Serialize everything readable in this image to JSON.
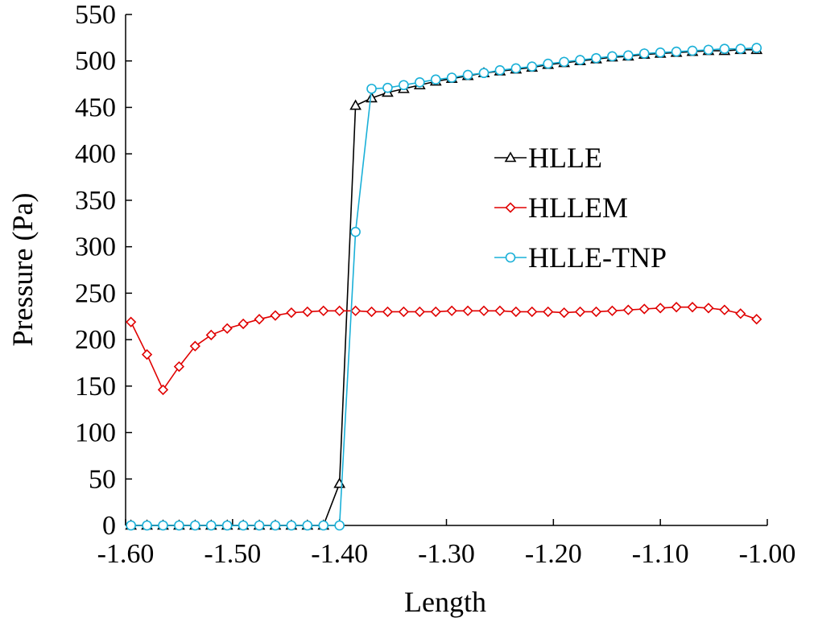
{
  "chart_data": {
    "type": "line",
    "title": "",
    "xlabel": "Length",
    "ylabel": "Pressure (Pa)",
    "xlim": [
      -1.6,
      -1.0
    ],
    "ylim": [
      0,
      550
    ],
    "x_ticks": [
      -1.6,
      -1.5,
      -1.4,
      -1.3,
      -1.2,
      -1.1,
      -1.0
    ],
    "x_tick_labels": [
      "-1.60",
      "-1.50",
      "-1.40",
      "-1.30",
      "-1.20",
      "-1.10",
      "-1.00"
    ],
    "y_ticks": [
      0,
      50,
      100,
      150,
      200,
      250,
      300,
      350,
      400,
      450,
      500,
      550
    ],
    "y_tick_labels": [
      "0",
      "50",
      "100",
      "150",
      "200",
      "250",
      "300",
      "350",
      "400",
      "450",
      "500",
      "550"
    ],
    "grid": false,
    "legend_position": "right",
    "series": [
      {
        "name": "HLLE",
        "color": "#000000",
        "marker": "triangle",
        "x": [
          -1.595,
          -1.58,
          -1.565,
          -1.55,
          -1.535,
          -1.52,
          -1.505,
          -1.49,
          -1.475,
          -1.46,
          -1.445,
          -1.43,
          -1.415,
          -1.4,
          -1.385,
          -1.37,
          -1.355,
          -1.34,
          -1.325,
          -1.31,
          -1.295,
          -1.28,
          -1.265,
          -1.25,
          -1.235,
          -1.22,
          -1.205,
          -1.19,
          -1.175,
          -1.16,
          -1.145,
          -1.13,
          -1.115,
          -1.1,
          -1.085,
          -1.07,
          -1.055,
          -1.04,
          -1.025,
          -1.01
        ],
        "values": [
          0,
          0,
          0,
          0,
          0,
          0,
          0,
          0,
          0,
          0,
          0,
          0,
          0,
          45,
          452,
          460,
          466,
          470,
          474,
          478,
          481,
          484,
          487,
          489,
          491,
          493,
          496,
          498,
          500,
          502,
          504,
          505,
          507,
          508,
          509,
          510,
          511,
          511,
          512,
          512
        ]
      },
      {
        "name": "HLLEM",
        "color": "#e00000",
        "marker": "diamond",
        "x": [
          -1.595,
          -1.58,
          -1.565,
          -1.55,
          -1.535,
          -1.52,
          -1.505,
          -1.49,
          -1.475,
          -1.46,
          -1.445,
          -1.43,
          -1.415,
          -1.4,
          -1.385,
          -1.37,
          -1.355,
          -1.34,
          -1.325,
          -1.31,
          -1.295,
          -1.28,
          -1.265,
          -1.25,
          -1.235,
          -1.22,
          -1.205,
          -1.19,
          -1.175,
          -1.16,
          -1.145,
          -1.13,
          -1.115,
          -1.1,
          -1.085,
          -1.07,
          -1.055,
          -1.04,
          -1.025,
          -1.01
        ],
        "values": [
          219,
          184,
          146,
          171,
          193,
          205,
          212,
          217,
          222,
          226,
          229,
          230,
          231,
          231,
          231,
          230,
          230,
          230,
          230,
          230,
          231,
          231,
          231,
          231,
          230,
          230,
          230,
          229,
          230,
          230,
          231,
          232,
          233,
          234,
          235,
          235,
          234,
          232,
          228,
          222
        ]
      },
      {
        "name": "HLLE-TNP",
        "color": "#1ab0d8",
        "marker": "circle",
        "x": [
          -1.595,
          -1.58,
          -1.565,
          -1.55,
          -1.535,
          -1.52,
          -1.505,
          -1.49,
          -1.475,
          -1.46,
          -1.445,
          -1.43,
          -1.415,
          -1.4,
          -1.385,
          -1.37,
          -1.355,
          -1.34,
          -1.325,
          -1.31,
          -1.295,
          -1.28,
          -1.265,
          -1.25,
          -1.235,
          -1.22,
          -1.205,
          -1.19,
          -1.175,
          -1.16,
          -1.145,
          -1.13,
          -1.115,
          -1.1,
          -1.085,
          -1.07,
          -1.055,
          -1.04,
          -1.025,
          -1.01
        ],
        "values": [
          0,
          0,
          0,
          0,
          0,
          0,
          0,
          0,
          0,
          0,
          0,
          0,
          0,
          0,
          316,
          470,
          471,
          474,
          477,
          480,
          482,
          485,
          487,
          490,
          492,
          494,
          497,
          499,
          501,
          503,
          505,
          506,
          508,
          509,
          510,
          511,
          512,
          513,
          513,
          514
        ]
      }
    ]
  }
}
